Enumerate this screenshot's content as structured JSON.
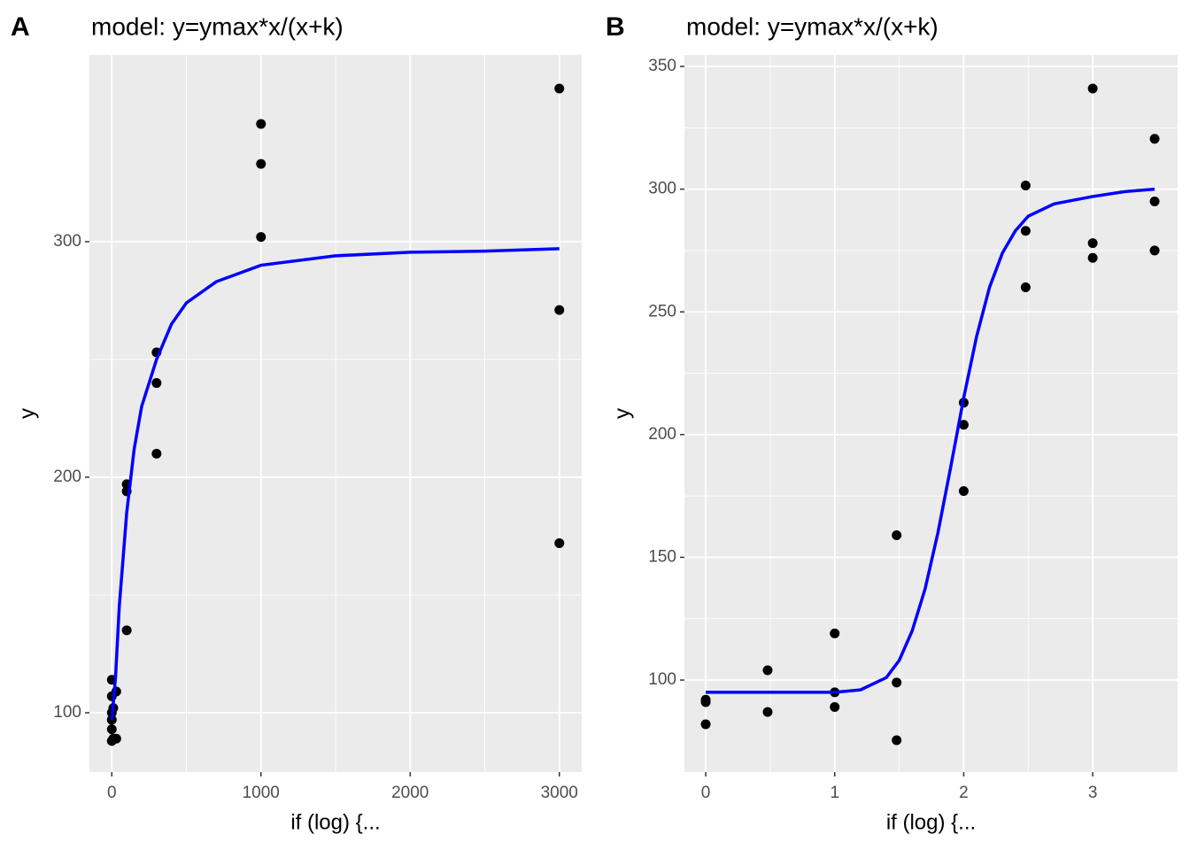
{
  "chart_data": [
    {
      "type": "scatter",
      "panel_label": "A",
      "title": "model: y=ymax*x/(x+k)",
      "x_label": "if (log) {...",
      "y_label": "y",
      "xlim": [
        -150,
        3150
      ],
      "ylim": [
        74.8,
        379.3
      ],
      "xticks": [
        0,
        1000,
        2000,
        3000
      ],
      "yticks": [
        100,
        200,
        300
      ],
      "grid": true,
      "series": [
        {
          "type": "scatter",
          "color": "#000000",
          "x": [
            0,
            0,
            0,
            0,
            0,
            0,
            10,
            10,
            30,
            30,
            100,
            100,
            100,
            300,
            300,
            300,
            1000,
            1000,
            1000,
            3000,
            3000,
            3000
          ],
          "values": [
            114,
            107,
            100,
            97,
            93,
            88,
            102,
            89,
            109,
            89,
            197,
            194,
            135,
            253,
            240,
            210,
            350,
            333,
            302,
            365,
            271,
            172
          ]
        },
        {
          "type": "line",
          "color": "#0000ff",
          "x": [
            0,
            25,
            50,
            100,
            150,
            200,
            300,
            400,
            500,
            700,
            1000,
            1500,
            2000,
            2500,
            3000
          ],
          "values": [
            97,
            115,
            145,
            185,
            212,
            230,
            250,
            265,
            274,
            283,
            290,
            294,
            295.5,
            296,
            297
          ]
        }
      ]
    },
    {
      "type": "scatter",
      "panel_label": "B",
      "title": "model: y=ymax*x/(x+k)",
      "x_label": "if (log) {...",
      "y_label": "y",
      "xlim": [
        -0.165,
        3.658
      ],
      "ylim": [
        62.5,
        354.7
      ],
      "xticks": [
        0,
        1,
        2,
        3
      ],
      "yticks": [
        100,
        150,
        200,
        250,
        300,
        350
      ],
      "grid": true,
      "series": [
        {
          "type": "scatter",
          "color": "#000000",
          "x": [
            0,
            0,
            0,
            0.48,
            0.48,
            1,
            1,
            1,
            1.48,
            1.48,
            1.48,
            2,
            2,
            2,
            2.48,
            2.48,
            2.48,
            3,
            3,
            3,
            3.48,
            3.48,
            3.48
          ],
          "values": [
            92,
            91,
            82,
            104,
            87,
            119,
            95,
            89,
            159,
            99,
            75.5,
            213,
            204,
            177,
            301.5,
            283,
            260,
            341,
            278,
            272,
            320.5,
            295,
            275
          ]
        },
        {
          "type": "line",
          "color": "#0000ff",
          "x": [
            0,
            0.5,
            1,
            1.2,
            1.4,
            1.5,
            1.6,
            1.7,
            1.8,
            1.9,
            2,
            2.1,
            2.2,
            2.3,
            2.4,
            2.5,
            2.7,
            3,
            3.25,
            3.48
          ],
          "values": [
            95,
            95,
            95,
            96,
            101,
            108,
            120,
            137,
            160,
            187,
            215,
            240,
            260,
            274,
            283,
            289,
            294,
            297,
            299,
            300
          ]
        }
      ]
    }
  ]
}
